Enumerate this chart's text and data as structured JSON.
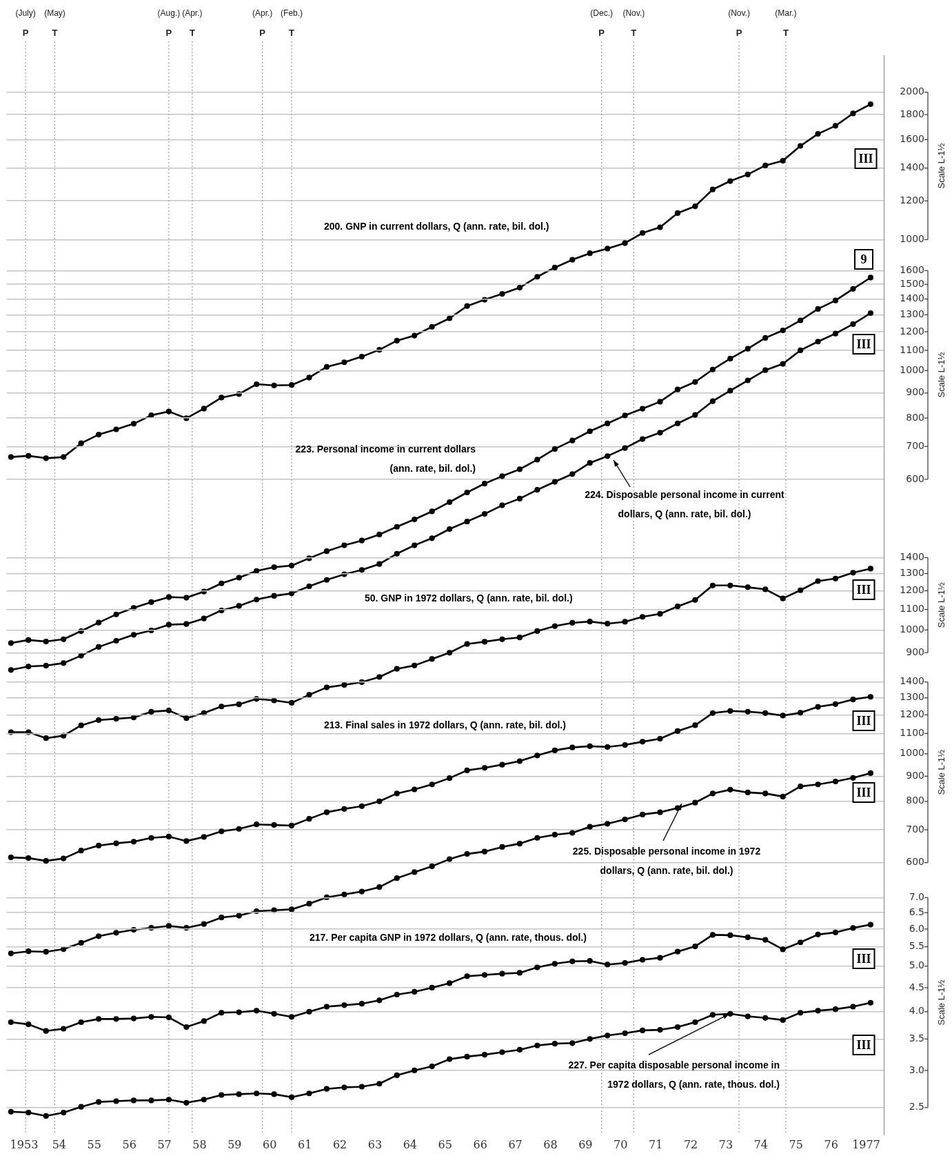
{
  "chart_data": [
    {
      "type": "line",
      "log": true,
      "grid": "y",
      "marker": "circle",
      "tick_labels": "y",
      "ylabel": "Scale L-1½",
      "x": [
        "1953-02",
        "1953-08",
        "1954-02",
        "1954-08",
        "1955-02",
        "1955-08",
        "1956-02",
        "1956-08",
        "1957-02",
        "1957-08",
        "1958-02",
        "1958-08",
        "1959-02",
        "1959-08",
        "1960-02",
        "1960-08",
        "1961-02",
        "1961-08",
        "1962-02",
        "1962-08",
        "1963-02",
        "1963-08",
        "1964-02",
        "1964-08",
        "1965-02",
        "1965-08",
        "1966-02",
        "1966-08",
        "1967-02",
        "1967-08",
        "1968-02",
        "1968-08",
        "1969-02",
        "1969-08",
        "1970-02",
        "1970-08",
        "1971-02",
        "1971-08",
        "1972-02",
        "1972-08",
        "1973-02",
        "1973-08",
        "1974-02",
        "1974-08",
        "1975-02",
        "1975-08",
        "1976-02",
        "1976-08",
        "1977-02",
        "1977-08"
      ],
      "xlim": [
        "1953",
        "1978"
      ],
      "ylim": [
        14.9,
        2380
      ],
      "yticks": [
        1000,
        1200,
        1400,
        1600,
        1800,
        2000
      ],
      "series": [
        {
          "name": "200. GNP in current dollars, Q (ann. rate, bil. dol.)",
          "color": "#000000",
          "values": [
            360,
            362,
            358,
            360,
            384,
            400,
            410,
            421,
            438,
            446,
            432,
            452,
            476,
            484,
            507,
            504,
            505,
            523,
            550,
            562,
            577,
            596,
            622,
            637,
            664,
            691,
            732,
            754,
            775,
            798,
            840,
            877,
            910,
            938,
            959,
            984,
            1032,
            1060,
            1133,
            1170,
            1266,
            1317,
            1359,
            1417,
            1449,
            1554,
            1644,
            1708,
            1810,
            1890
          ]
        }
      ],
      "annotations": [
        "III"
      ],
      "ref_lines": [
        {
          "axis": "x",
          "value": "1953-07",
          "label": "(July)\nP",
          "color": "#9a9a9a",
          "line_style": "dotted"
        },
        {
          "axis": "x",
          "value": "1954-05",
          "label": "(May)\nT",
          "color": "#9a9a9a",
          "line_style": "dotted"
        },
        {
          "axis": "x",
          "value": "1957-08",
          "label": "(Aug.)\nP",
          "color": "#9a9a9a",
          "line_style": "dotted"
        },
        {
          "axis": "x",
          "value": "1958-04",
          "label": "(Apr.)\nT",
          "color": "#9a9a9a",
          "line_style": "dotted"
        },
        {
          "axis": "x",
          "value": "1960-04",
          "label": "(Apr.)\nP",
          "color": "#9a9a9a",
          "line_style": "dotted"
        },
        {
          "axis": "x",
          "value": "1961-02",
          "label": "(Feb.)\nT",
          "color": "#9a9a9a",
          "line_style": "dotted"
        },
        {
          "axis": "x",
          "value": "1969-12",
          "label": "(Dec.)\nP",
          "color": "#9a9a9a",
          "line_style": "dotted"
        },
        {
          "axis": "x",
          "value": "1970-11",
          "label": "(Nov.)\nT",
          "color": "#9a9a9a",
          "line_style": "dotted"
        },
        {
          "axis": "x",
          "value": "1973-11",
          "label": "(Nov.)\nP",
          "color": "#9a9a9a",
          "line_style": "dotted"
        },
        {
          "axis": "x",
          "value": "1975-03",
          "label": "(Mar.)\nT",
          "color": "#9a9a9a",
          "line_style": "dotted"
        }
      ]
    },
    {
      "type": "line",
      "log": true,
      "grid": "y",
      "marker": "circle",
      "tick_labels": "y",
      "ylabel": "Scale L-1½",
      "x": [
        "1953-02",
        "1953-08",
        "1954-02",
        "1954-08",
        "1955-02",
        "1955-08",
        "1956-02",
        "1956-08",
        "1957-02",
        "1957-08",
        "1958-02",
        "1958-08",
        "1959-02",
        "1959-08",
        "1960-02",
        "1960-08",
        "1961-02",
        "1961-08",
        "1962-02",
        "1962-08",
        "1963-02",
        "1963-08",
        "1964-02",
        "1964-08",
        "1965-02",
        "1965-08",
        "1966-02",
        "1966-08",
        "1967-02",
        "1967-08",
        "1968-02",
        "1968-08",
        "1969-02",
        "1969-08",
        "1970-02",
        "1970-08",
        "1971-02",
        "1971-08",
        "1972-02",
        "1972-08",
        "1973-02",
        "1973-08",
        "1974-02",
        "1974-08",
        "1975-02",
        "1975-08",
        "1976-02",
        "1976-08",
        "1977-02",
        "1977-08"
      ],
      "xlim": [
        "1953",
        "1978"
      ],
      "ylim": [
        27.6,
        4402
      ],
      "yticks": [
        600,
        700,
        800,
        900,
        1000,
        1100,
        1200,
        1300,
        1400,
        1500,
        1600
      ],
      "series": [
        {
          "name": "223. Personal income in current dollars\n(ann. rate, bil. dol.)",
          "color": "#000000",
          "values": [
            278,
            282,
            280,
            283,
            294,
            306,
            318,
            328,
            337,
            345,
            344,
            354,
            368,
            378,
            390,
            397,
            400,
            414,
            428,
            440,
            450,
            463,
            480,
            497,
            516,
            539,
            564,
            588,
            609,
            629,
            658,
            692,
            720,
            752,
            780,
            810,
            836,
            864,
            915,
            948,
            1005,
            1058,
            1108,
            1166,
            1208,
            1266,
            1336,
            1390,
            1468,
            1548
          ]
        },
        {
          "name": "224. Disposable personal income in current\ndollars, Q (ann. rate, bil. dol.)",
          "color": "#000000",
          "values": [
            245,
            249,
            250,
            253,
            262,
            273,
            281,
            289,
            295,
            303,
            304,
            312,
            324,
            331,
            341,
            347,
            351,
            363,
            374,
            384,
            392,
            403,
            423,
            440,
            455,
            475,
            492,
            510,
            531,
            548,
            571,
            593,
            615,
            648,
            669,
            695,
            725,
            747,
            780,
            812,
            866,
            910,
            955,
            1002,
            1032,
            1100,
            1146,
            1190,
            1244,
            1310
          ]
        }
      ],
      "annotations": [
        "9",
        "III"
      ]
    },
    {
      "type": "line",
      "log": true,
      "grid": "y",
      "marker": "circle",
      "tick_labels": "y",
      "ylabel": "Scale L-1½",
      "x": [
        "1953-02",
        "1953-08",
        "1954-02",
        "1954-08",
        "1955-02",
        "1955-08",
        "1956-02",
        "1956-08",
        "1957-02",
        "1957-08",
        "1958-02",
        "1958-08",
        "1959-02",
        "1959-08",
        "1960-02",
        "1960-08",
        "1961-02",
        "1961-08",
        "1962-02",
        "1962-08",
        "1963-02",
        "1963-08",
        "1964-02",
        "1964-08",
        "1965-02",
        "1965-08",
        "1966-02",
        "1966-08",
        "1967-02",
        "1967-08",
        "1968-02",
        "1968-08",
        "1969-02",
        "1969-08",
        "1970-02",
        "1970-08",
        "1971-02",
        "1971-08",
        "1972-02",
        "1972-08",
        "1973-02",
        "1973-08",
        "1974-02",
        "1974-08",
        "1975-02",
        "1975-08",
        "1976-02",
        "1976-08",
        "1977-02",
        "1977-08"
      ],
      "xlim": [
        "1953",
        "1978"
      ],
      "ylim": [
        95.9,
        14450
      ],
      "yticks": [
        900,
        1000,
        1100,
        1200,
        1300,
        1400
      ],
      "series": [
        {
          "name": "50. GNP in 1972 dollars, Q (ann. rate, bil. dol.)",
          "color": "#000000",
          "values": [
            622,
            622,
            605,
            612,
            642,
            658,
            662,
            666,
            684,
            688,
            664,
            680,
            701,
            708,
            726,
            721,
            713,
            740,
            766,
            775,
            785,
            804,
            835,
            848,
            874,
            900,
            937,
            947,
            958,
            966,
            995,
            1018,
            1034,
            1040,
            1030,
            1039,
            1063,
            1078,
            1116,
            1150,
            1230,
            1230,
            1220,
            1208,
            1158,
            1203,
            1255,
            1270,
            1305,
            1330
          ]
        }
      ],
      "annotations": [
        "III"
      ]
    },
    {
      "type": "line",
      "log": true,
      "grid": "y",
      "marker": "circle",
      "tick_labels": "y",
      "ylabel": "Scale L-1½",
      "x": [
        "1953-02",
        "1953-08",
        "1954-02",
        "1954-08",
        "1955-02",
        "1955-08",
        "1956-02",
        "1956-08",
        "1957-02",
        "1957-08",
        "1958-02",
        "1958-08",
        "1959-02",
        "1959-08",
        "1960-02",
        "1960-08",
        "1961-02",
        "1961-08",
        "1962-02",
        "1962-08",
        "1963-02",
        "1963-08",
        "1964-02",
        "1964-08",
        "1965-02",
        "1965-08",
        "1966-02",
        "1966-08",
        "1967-02",
        "1967-08",
        "1968-02",
        "1968-08",
        "1969-02",
        "1969-08",
        "1970-02",
        "1970-08",
        "1971-02",
        "1971-08",
        "1972-02",
        "1972-08",
        "1973-02",
        "1973-08",
        "1974-02",
        "1974-08",
        "1975-02",
        "1975-08",
        "1976-02",
        "1976-08",
        "1977-02",
        "1977-08"
      ],
      "xlim": [
        "1953",
        "1978"
      ],
      "ylim": [
        167.6,
        26470
      ],
      "yticks": [
        600,
        700,
        800,
        900,
        1000,
        1100,
        1200,
        1300,
        1400
      ],
      "series": [
        {
          "name": "213. Final sales in 1972 dollars, Q (ann. rate, bil. dol.)",
          "color": "#000000",
          "values": [
            615,
            613,
            605,
            612,
            635,
            650,
            657,
            662,
            674,
            678,
            664,
            677,
            695,
            703,
            718,
            716,
            714,
            737,
            760,
            772,
            782,
            800,
            830,
            846,
            866,
            892,
            925,
            936,
            950,
            966,
            992,
            1016,
            1030,
            1036,
            1032,
            1042,
            1058,
            1073,
            1112,
            1143,
            1210,
            1222,
            1218,
            1210,
            1196,
            1212,
            1246,
            1262,
            1290,
            1306
          ]
        },
        {
          "name": "225. Disposable personal income in 1972\ndollars, Q (ann. rate, bil. dol.)",
          "color": "#000000",
          "values": [
            392,
            396,
            395,
            400,
            412,
            425,
            432,
            438,
            442,
            446,
            442,
            450,
            464,
            468,
            478,
            480,
            482,
            495,
            510,
            517,
            524,
            535,
            558,
            574,
            590,
            610,
            625,
            632,
            646,
            656,
            674,
            684,
            690,
            710,
            720,
            735,
            752,
            760,
            775,
            795,
            830,
            845,
            834,
            830,
            818,
            858,
            866,
            878,
            893,
            913
          ]
        }
      ],
      "annotations": [
        "III",
        "III"
      ]
    },
    {
      "type": "line",
      "log": true,
      "grid": "y",
      "marker": "circle",
      "ylabel": "Scale L-1½",
      "x": [
        "1953-02",
        "1953-08",
        "1954-02",
        "1954-08",
        "1955-02",
        "1955-08",
        "1956-02",
        "1956-08",
        "1957-02",
        "1957-08",
        "1958-02",
        "1958-08",
        "1959-02",
        "1959-08",
        "1960-02",
        "1960-08",
        "1961-02",
        "1961-08",
        "1962-02",
        "1962-08",
        "1963-02",
        "1963-08",
        "1964-02",
        "1964-08",
        "1965-02",
        "1965-08",
        "1966-02",
        "1966-08",
        "1967-02",
        "1967-08",
        "1968-02",
        "1968-08",
        "1969-02",
        "1969-08",
        "1970-02",
        "1970-08",
        "1971-02",
        "1971-08",
        "1972-02",
        "1972-08",
        "1973-02",
        "1973-08",
        "1974-02",
        "1974-08",
        "1975-02",
        "1975-08",
        "1976-02",
        "1976-08",
        "1977-02",
        "1977-08"
      ],
      "xlim": [
        "1953",
        "1978"
      ],
      "ylim": [
        2.19,
        434.7
      ],
      "xticks": [
        {
          "value": "1953-07-01",
          "label": "1953"
        },
        {
          "value": "1954-07-01",
          "label": "54"
        },
        {
          "value": "1955-07-01",
          "label": "55"
        },
        {
          "value": "1956-07-01",
          "label": "56"
        },
        {
          "value": "1957-07-01",
          "label": "57"
        },
        {
          "value": "1958-07-01",
          "label": "58"
        },
        {
          "value": "1959-07-01",
          "label": "59"
        },
        {
          "value": "1960-07-01",
          "label": "60"
        },
        {
          "value": "1961-07-01",
          "label": "61"
        },
        {
          "value": "1962-07-01",
          "label": "62"
        },
        {
          "value": "1963-07-01",
          "label": "63"
        },
        {
          "value": "1964-07-01",
          "label": "64"
        },
        {
          "value": "1965-07-01",
          "label": "65"
        },
        {
          "value": "1966-07-01",
          "label": "66"
        },
        {
          "value": "1967-07-01",
          "label": "67"
        },
        {
          "value": "1968-07-01",
          "label": "68"
        },
        {
          "value": "1969-07-01",
          "label": "69"
        },
        {
          "value": "1970-07-01",
          "label": "70"
        },
        {
          "value": "1971-07-01",
          "label": "71"
        },
        {
          "value": "1972-07-01",
          "label": "72"
        },
        {
          "value": "1973-07-01",
          "label": "73"
        },
        {
          "value": "1974-07-01",
          "label": "74"
        },
        {
          "value": "1975-07-01",
          "label": "75"
        },
        {
          "value": "1976-07-01",
          "label": "76"
        },
        {
          "value": "1977-07-01",
          "label": "1977"
        }
      ],
      "yticks": [
        {
          "value": 2.5,
          "label": "2.5"
        },
        {
          "value": 3,
          "label": "3.0"
        },
        {
          "value": 3.5,
          "label": "3.5"
        },
        {
          "value": 4,
          "label": "4.0"
        },
        {
          "value": 4.5,
          "label": "4.5"
        },
        {
          "value": 5,
          "label": "5.0"
        },
        {
          "value": 5.5,
          "label": "5.5"
        },
        {
          "value": 6,
          "label": "6.0"
        },
        {
          "value": 6.5,
          "label": "6.5"
        },
        {
          "value": 7,
          "label": "7.0"
        }
      ],
      "series": [
        {
          "name": "217. Per capita GNP in 1972 dollars, Q (ann. rate, thous. dol.)",
          "color": "#000000",
          "values": [
            3.8,
            3.76,
            3.64,
            3.68,
            3.8,
            3.86,
            3.86,
            3.87,
            3.9,
            3.89,
            3.71,
            3.82,
            3.98,
            3.99,
            4.02,
            3.96,
            3.9,
            4.0,
            4.1,
            4.13,
            4.16,
            4.23,
            4.35,
            4.41,
            4.5,
            4.6,
            4.76,
            4.79,
            4.82,
            4.84,
            4.97,
            5.06,
            5.12,
            5.13,
            5.04,
            5.08,
            5.16,
            5.21,
            5.37,
            5.51,
            5.83,
            5.82,
            5.76,
            5.69,
            5.43,
            5.62,
            5.84,
            5.9,
            6.03,
            6.13
          ]
        },
        {
          "name": "227. Per capita disposable personal income in\n1972 dollars, Q (ann. rate, thous. dol.)",
          "color": "#000000",
          "values": [
            2.45,
            2.44,
            2.4,
            2.44,
            2.51,
            2.57,
            2.58,
            2.59,
            2.59,
            2.6,
            2.56,
            2.6,
            2.66,
            2.67,
            2.68,
            2.67,
            2.63,
            2.68,
            2.74,
            2.76,
            2.77,
            2.81,
            2.93,
            3.0,
            3.06,
            3.17,
            3.21,
            3.24,
            3.28,
            3.32,
            3.39,
            3.42,
            3.43,
            3.5,
            3.56,
            3.6,
            3.65,
            3.66,
            3.71,
            3.8,
            3.94,
            3.96,
            3.91,
            3.88,
            3.84,
            3.98,
            4.02,
            4.05,
            4.1,
            4.18
          ]
        }
      ],
      "annotations": [
        "III",
        "III"
      ]
    }
  ]
}
